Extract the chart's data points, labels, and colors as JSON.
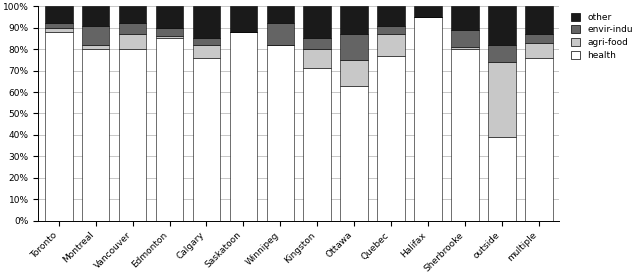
{
  "categories": [
    "Toronto",
    "Montreal",
    "Vancouver",
    "Edmonton",
    "Calgary",
    "Saskatoon",
    "Winnipeg",
    "Kingston",
    "Ottawa",
    "Quebec",
    "Halifax",
    "Sherbrooke",
    "outside",
    "multiple"
  ],
  "health": [
    0.88,
    0.8,
    0.8,
    0.85,
    0.76,
    0.88,
    0.82,
    0.71,
    0.63,
    0.77,
    0.95,
    0.8,
    0.39,
    0.76
  ],
  "agri_food": [
    0.02,
    0.02,
    0.07,
    0.01,
    0.06,
    0.0,
    0.0,
    0.09,
    0.12,
    0.1,
    0.0,
    0.01,
    0.35,
    0.07
  ],
  "envir_indu": [
    0.02,
    0.09,
    0.05,
    0.04,
    0.03,
    0.0,
    0.1,
    0.05,
    0.12,
    0.04,
    0.0,
    0.08,
    0.08,
    0.04
  ],
  "other": [
    0.08,
    0.09,
    0.08,
    0.1,
    0.15,
    0.12,
    0.08,
    0.15,
    0.13,
    0.09,
    0.05,
    0.11,
    0.18,
    0.13
  ],
  "colors": {
    "health": "#ffffff",
    "agri_food": "#c8c8c8",
    "envir_indu": "#646464",
    "other": "#1a1a1a"
  },
  "bar_width": 0.75,
  "ylim": [
    0.0,
    1.0
  ],
  "yticks": [
    0.0,
    0.1,
    0.2,
    0.3,
    0.4,
    0.5,
    0.6,
    0.7,
    0.8,
    0.9,
    1.0
  ],
  "ytick_labels": [
    "0%",
    "10%",
    "20%",
    "30%",
    "40%",
    "50%",
    "60%",
    "70%",
    "80%",
    "90%",
    "100%"
  ],
  "edge_color": "#000000",
  "grid_color": "#b0b0b0",
  "figwidth": 6.37,
  "figheight": 2.76,
  "dpi": 100
}
